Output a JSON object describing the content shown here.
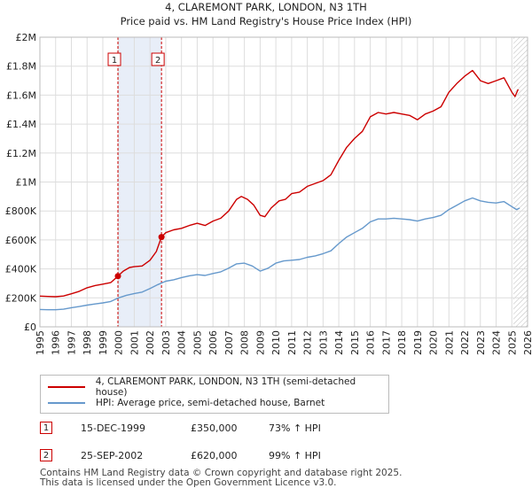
{
  "chart_data": {
    "type": "line",
    "title": "4, CLAREMONT PARK, LONDON, N3 1TH",
    "subtitle": "Price paid vs. HM Land Registry's House Price Index (HPI)",
    "xlim": [
      1995,
      2026
    ],
    "ylim": [
      0,
      2000000
    ],
    "x_ticks": [
      1995,
      1996,
      1997,
      1998,
      1999,
      2000,
      2001,
      2002,
      2003,
      2004,
      2005,
      2006,
      2007,
      2008,
      2009,
      2010,
      2011,
      2012,
      2013,
      2014,
      2015,
      2016,
      2017,
      2018,
      2019,
      2020,
      2021,
      2022,
      2023,
      2024,
      2025,
      2026
    ],
    "y_ticks": [
      {
        "value": 0,
        "label": "£0"
      },
      {
        "value": 200000,
        "label": "£200K"
      },
      {
        "value": 400000,
        "label": "£400K"
      },
      {
        "value": 600000,
        "label": "£600K"
      },
      {
        "value": 800000,
        "label": "£800K"
      },
      {
        "value": 1000000,
        "label": "£1M"
      },
      {
        "value": 1200000,
        "label": "£1.2M"
      },
      {
        "value": 1400000,
        "label": "£1.4M"
      },
      {
        "value": 1600000,
        "label": "£1.6M"
      },
      {
        "value": 1800000,
        "label": "£1.8M"
      },
      {
        "value": 2000000,
        "label": "£2M"
      }
    ],
    "shaded_range": [
      1999.96,
      2002.73
    ],
    "forecast_start": 2025.1,
    "grid": true,
    "series": [
      {
        "name": "4, CLAREMONT PARK, LONDON, N3 1TH (semi-detached house)",
        "color": "#cc0000",
        "points": [
          [
            1995.0,
            212000
          ],
          [
            1995.5,
            210000
          ],
          [
            1996.0,
            208000
          ],
          [
            1996.5,
            213000
          ],
          [
            1997.0,
            228000
          ],
          [
            1997.5,
            245000
          ],
          [
            1998.0,
            270000
          ],
          [
            1998.5,
            285000
          ],
          [
            1999.0,
            295000
          ],
          [
            1999.5,
            305000
          ],
          [
            1999.96,
            350000
          ],
          [
            2000.3,
            385000
          ],
          [
            2000.7,
            410000
          ],
          [
            2001.0,
            415000
          ],
          [
            2001.5,
            420000
          ],
          [
            2002.0,
            460000
          ],
          [
            2002.4,
            520000
          ],
          [
            2002.73,
            620000
          ],
          [
            2003.0,
            650000
          ],
          [
            2003.5,
            670000
          ],
          [
            2004.0,
            680000
          ],
          [
            2004.5,
            700000
          ],
          [
            2005.0,
            715000
          ],
          [
            2005.5,
            700000
          ],
          [
            2006.0,
            730000
          ],
          [
            2006.5,
            750000
          ],
          [
            2007.0,
            800000
          ],
          [
            2007.5,
            880000
          ],
          [
            2007.8,
            900000
          ],
          [
            2008.2,
            880000
          ],
          [
            2008.6,
            840000
          ],
          [
            2009.0,
            770000
          ],
          [
            2009.3,
            760000
          ],
          [
            2009.7,
            820000
          ],
          [
            2010.2,
            870000
          ],
          [
            2010.6,
            880000
          ],
          [
            2011.0,
            920000
          ],
          [
            2011.5,
            930000
          ],
          [
            2012.0,
            970000
          ],
          [
            2012.5,
            990000
          ],
          [
            2013.0,
            1010000
          ],
          [
            2013.5,
            1050000
          ],
          [
            2014.0,
            1150000
          ],
          [
            2014.5,
            1240000
          ],
          [
            2015.0,
            1300000
          ],
          [
            2015.5,
            1350000
          ],
          [
            2016.0,
            1450000
          ],
          [
            2016.5,
            1480000
          ],
          [
            2017.0,
            1470000
          ],
          [
            2017.5,
            1480000
          ],
          [
            2018.0,
            1470000
          ],
          [
            2018.5,
            1460000
          ],
          [
            2019.0,
            1430000
          ],
          [
            2019.5,
            1470000
          ],
          [
            2020.0,
            1490000
          ],
          [
            2020.5,
            1520000
          ],
          [
            2021.0,
            1620000
          ],
          [
            2021.5,
            1680000
          ],
          [
            2022.0,
            1730000
          ],
          [
            2022.5,
            1770000
          ],
          [
            2023.0,
            1700000
          ],
          [
            2023.5,
            1680000
          ],
          [
            2024.0,
            1700000
          ],
          [
            2024.5,
            1720000
          ],
          [
            2025.0,
            1620000
          ],
          [
            2025.2,
            1590000
          ],
          [
            2025.4,
            1640000
          ]
        ]
      },
      {
        "name": "HPI: Average price, semi-detached house, Barnet",
        "color": "#6699cc",
        "points": [
          [
            1995.0,
            120000
          ],
          [
            1995.5,
            118000
          ],
          [
            1996.0,
            118000
          ],
          [
            1996.5,
            122000
          ],
          [
            1997.0,
            132000
          ],
          [
            1997.5,
            140000
          ],
          [
            1998.0,
            150000
          ],
          [
            1998.5,
            158000
          ],
          [
            1999.0,
            165000
          ],
          [
            1999.5,
            175000
          ],
          [
            2000.0,
            200000
          ],
          [
            2000.5,
            218000
          ],
          [
            2001.0,
            230000
          ],
          [
            2001.5,
            240000
          ],
          [
            2002.0,
            265000
          ],
          [
            2002.5,
            292000
          ],
          [
            2003.0,
            315000
          ],
          [
            2003.5,
            325000
          ],
          [
            2004.0,
            340000
          ],
          [
            2004.5,
            352000
          ],
          [
            2005.0,
            360000
          ],
          [
            2005.5,
            355000
          ],
          [
            2006.0,
            368000
          ],
          [
            2006.5,
            380000
          ],
          [
            2007.0,
            405000
          ],
          [
            2007.5,
            435000
          ],
          [
            2008.0,
            440000
          ],
          [
            2008.5,
            420000
          ],
          [
            2009.0,
            385000
          ],
          [
            2009.5,
            405000
          ],
          [
            2010.0,
            440000
          ],
          [
            2010.5,
            455000
          ],
          [
            2011.0,
            460000
          ],
          [
            2011.5,
            465000
          ],
          [
            2012.0,
            480000
          ],
          [
            2012.5,
            490000
          ],
          [
            2013.0,
            505000
          ],
          [
            2013.5,
            525000
          ],
          [
            2014.0,
            575000
          ],
          [
            2014.5,
            620000
          ],
          [
            2015.0,
            650000
          ],
          [
            2015.5,
            680000
          ],
          [
            2016.0,
            725000
          ],
          [
            2016.5,
            745000
          ],
          [
            2017.0,
            745000
          ],
          [
            2017.5,
            750000
          ],
          [
            2018.0,
            745000
          ],
          [
            2018.5,
            740000
          ],
          [
            2019.0,
            730000
          ],
          [
            2019.5,
            745000
          ],
          [
            2020.0,
            755000
          ],
          [
            2020.5,
            770000
          ],
          [
            2021.0,
            810000
          ],
          [
            2021.5,
            840000
          ],
          [
            2022.0,
            870000
          ],
          [
            2022.5,
            890000
          ],
          [
            2023.0,
            870000
          ],
          [
            2023.5,
            860000
          ],
          [
            2024.0,
            855000
          ],
          [
            2024.5,
            865000
          ],
          [
            2025.0,
            830000
          ],
          [
            2025.3,
            810000
          ],
          [
            2025.5,
            820000
          ]
        ]
      }
    ],
    "annotations": [
      {
        "label": "1",
        "x": 1999.96,
        "y": 350000
      },
      {
        "label": "2",
        "x": 2002.73,
        "y": 620000
      }
    ]
  },
  "legend": {
    "entries": [
      {
        "label": "4, CLAREMONT PARK, LONDON, N3 1TH (semi-detached house)",
        "color": "#cc0000"
      },
      {
        "label": "HPI: Average price, semi-detached house, Barnet",
        "color": "#6699cc"
      }
    ]
  },
  "transactions": [
    {
      "num": "1",
      "date": "15-DEC-1999",
      "price": "£350,000",
      "hpi": "73% ↑ HPI"
    },
    {
      "num": "2",
      "date": "25-SEP-2002",
      "price": "£620,000",
      "hpi": "99% ↑ HPI"
    }
  ],
  "footer": {
    "line1": "Contains HM Land Registry data © Crown copyright and database right 2025.",
    "line2": "This data is licensed under the Open Government Licence v3.0."
  },
  "colors": {
    "sale": "#cc0000",
    "hpi": "#6699cc",
    "shade": "#e8eef8"
  }
}
